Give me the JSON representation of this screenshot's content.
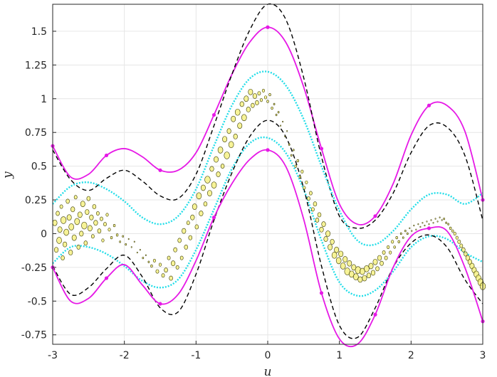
{
  "chart_data": {
    "type": "scatter",
    "xlabel": "u",
    "ylabel": "y",
    "xlim": [
      -3,
      3
    ],
    "ylim": [
      -0.82,
      1.7
    ],
    "xticks": [
      -3,
      -2,
      -1,
      0,
      1,
      2,
      3
    ],
    "xtick_labels": [
      "-3",
      "-2",
      "-1",
      "0",
      "1",
      "2",
      "3"
    ],
    "yticks": [
      -0.75,
      -0.5,
      -0.25,
      0,
      0.25,
      0.5,
      0.75,
      1,
      1.25,
      1.5
    ],
    "ytick_labels": [
      "-0.75",
      "-0.5",
      "-0.25",
      "0",
      "0.25",
      "0.5",
      "0.75",
      "1",
      "1.25",
      "1.5"
    ],
    "grid": true,
    "colors": {
      "outer_band": "#e619e6",
      "dashed_band": "#000000",
      "inner_band": "#22dde8",
      "marker_fill": "#f5f07a",
      "marker_edge": "#3a3a00"
    },
    "series": [
      {
        "style": "solid-magenta-with-markers",
        "x": [
          -3,
          -2.75,
          -2.5,
          -2.25,
          -2,
          -1.75,
          -1.5,
          -1.25,
          -1,
          -0.75,
          -0.5,
          -0.25,
          0,
          0.25,
          0.5,
          0.75,
          1,
          1.25,
          1.5,
          1.75,
          2,
          2.25,
          2.5,
          2.75,
          3
        ],
        "values": [
          0.65,
          0.42,
          0.44,
          0.58,
          0.63,
          0.57,
          0.47,
          0.47,
          0.6,
          0.88,
          1.18,
          1.42,
          1.53,
          1.42,
          1.09,
          0.63,
          0.22,
          0.07,
          0.13,
          0.37,
          0.73,
          0.95,
          0.95,
          0.76,
          0.25
        ]
      },
      {
        "style": "dashed-black",
        "x": [
          -3,
          -2.75,
          -2.5,
          -2.25,
          -2,
          -1.75,
          -1.5,
          -1.25,
          -1,
          -0.75,
          -0.5,
          -0.25,
          0,
          0.25,
          0.5,
          0.75,
          1,
          1.25,
          1.5,
          1.75,
          2,
          2.25,
          2.5,
          2.75,
          3
        ],
        "values": [
          0.62,
          0.4,
          0.32,
          0.41,
          0.47,
          0.39,
          0.28,
          0.26,
          0.44,
          0.8,
          1.18,
          1.51,
          1.7,
          1.59,
          1.16,
          0.57,
          0.13,
          0.04,
          0.1,
          0.3,
          0.6,
          0.8,
          0.79,
          0.58,
          0.1
        ]
      },
      {
        "style": "dotted-cyan",
        "x": [
          -3,
          -2.75,
          -2.5,
          -2.25,
          -2,
          -1.75,
          -1.5,
          -1.25,
          -1,
          -0.75,
          -0.5,
          -0.25,
          0,
          0.25,
          0.5,
          0.75,
          1,
          1.25,
          1.5,
          1.75,
          2,
          2.25,
          2.5,
          2.75,
          3
        ],
        "values": [
          0.22,
          0.35,
          0.38,
          0.33,
          0.24,
          0.12,
          0.07,
          0.13,
          0.33,
          0.65,
          0.95,
          1.15,
          1.2,
          1.1,
          0.85,
          0.5,
          0.17,
          -0.05,
          -0.08,
          0.02,
          0.18,
          0.29,
          0.29,
          0.22,
          0.3
        ]
      },
      {
        "style": "dotted-cyan",
        "x": [
          -3,
          -2.75,
          -2.5,
          -2.25,
          -2,
          -1.75,
          -1.5,
          -1.25,
          -1,
          -0.75,
          -0.5,
          -0.25,
          0,
          0.25,
          0.5,
          0.75,
          1,
          1.25,
          1.5,
          1.75,
          2,
          2.25,
          2.5,
          2.75,
          3
        ],
        "values": [
          -0.22,
          -0.1,
          -0.1,
          -0.15,
          -0.24,
          -0.35,
          -0.4,
          -0.34,
          -0.12,
          0.18,
          0.48,
          0.67,
          0.71,
          0.6,
          0.33,
          -0.05,
          -0.36,
          -0.46,
          -0.42,
          -0.28,
          -0.1,
          -0.02,
          -0.04,
          -0.14,
          -0.21
        ]
      },
      {
        "style": "dashed-black",
        "x": [
          -3,
          -2.75,
          -2.5,
          -2.25,
          -2,
          -1.75,
          -1.5,
          -1.25,
          -1,
          -0.75,
          -0.5,
          -0.25,
          0,
          0.25,
          0.5,
          0.75,
          1,
          1.25,
          1.5,
          1.75,
          2,
          2.25,
          2.5,
          2.75,
          3
        ],
        "values": [
          -0.24,
          -0.45,
          -0.4,
          -0.26,
          -0.16,
          -0.32,
          -0.55,
          -0.58,
          -0.3,
          0.1,
          0.45,
          0.72,
          0.84,
          0.72,
          0.34,
          -0.24,
          -0.68,
          -0.77,
          -0.55,
          -0.25,
          -0.07,
          -0.01,
          -0.1,
          -0.34,
          -0.52
        ]
      },
      {
        "style": "solid-magenta-with-markers",
        "x": [
          -3,
          -2.75,
          -2.5,
          -2.25,
          -2,
          -1.75,
          -1.5,
          -1.25,
          -1,
          -0.75,
          -0.5,
          -0.25,
          0,
          0.25,
          0.5,
          0.75,
          1,
          1.25,
          1.5,
          1.75,
          2,
          2.25,
          2.5,
          2.75,
          3
        ],
        "values": [
          -0.25,
          -0.5,
          -0.48,
          -0.33,
          -0.23,
          -0.38,
          -0.52,
          -0.45,
          -0.2,
          0.12,
          0.37,
          0.55,
          0.62,
          0.5,
          0.11,
          -0.44,
          -0.78,
          -0.82,
          -0.6,
          -0.25,
          -0.02,
          0.04,
          0.02,
          -0.25,
          -0.65
        ]
      }
    ],
    "scatter_points": [
      [
        -2.97,
        0.08,
        9
      ],
      [
        -2.95,
        -0.12,
        8
      ],
      [
        -2.93,
        0.15,
        7
      ],
      [
        -2.91,
        -0.05,
        10
      ],
      [
        -2.9,
        0.03,
        9
      ],
      [
        -2.88,
        0.2,
        6
      ],
      [
        -2.86,
        -0.18,
        7
      ],
      [
        -2.85,
        0.1,
        11
      ],
      [
        -2.83,
        -0.08,
        8
      ],
      [
        -2.81,
        0.01,
        10
      ],
      [
        -2.79,
        0.24,
        7
      ],
      [
        -2.77,
        0.12,
        9
      ],
      [
        -2.75,
        -0.14,
        8
      ],
      [
        -2.74,
        0.05,
        10
      ],
      [
        -2.72,
        0.18,
        8
      ],
      [
        -2.7,
        -0.03,
        9
      ],
      [
        -2.68,
        0.27,
        6
      ],
      [
        -2.66,
        0.09,
        10
      ],
      [
        -2.64,
        -0.1,
        7
      ],
      [
        -2.62,
        0.14,
        9
      ],
      [
        -2.6,
        0.0,
        8
      ],
      [
        -2.58,
        0.22,
        9
      ],
      [
        -2.56,
        0.06,
        11
      ],
      [
        -2.54,
        -0.07,
        7
      ],
      [
        -2.52,
        0.16,
        8
      ],
      [
        -2.5,
        0.26,
        7
      ],
      [
        -2.48,
        0.04,
        9
      ],
      [
        -2.46,
        0.12,
        8
      ],
      [
        -2.44,
        -0.02,
        6
      ],
      [
        -2.42,
        0.2,
        7
      ],
      [
        -2.4,
        0.08,
        8
      ],
      [
        -2.37,
        0.15,
        6
      ],
      [
        -2.35,
        0.02,
        7
      ],
      [
        -2.32,
        0.11,
        6
      ],
      [
        -2.3,
        -0.05,
        5
      ],
      [
        -2.27,
        0.07,
        6
      ],
      [
        -2.24,
        0.14,
        5
      ],
      [
        -2.21,
        0.03,
        5
      ],
      [
        -2.18,
        -0.03,
        4
      ],
      [
        -2.14,
        0.06,
        4
      ],
      [
        -2.1,
        -0.01,
        4
      ],
      [
        -2.06,
        -0.06,
        3
      ],
      [
        -2.02,
        -0.02,
        3
      ],
      [
        -1.98,
        -0.08,
        3
      ],
      [
        -1.94,
        -0.04,
        2
      ],
      [
        -1.9,
        -0.1,
        2
      ],
      [
        -1.86,
        -0.06,
        2
      ],
      [
        -1.82,
        -0.14,
        2
      ],
      [
        -1.78,
        -0.12,
        2
      ],
      [
        -1.74,
        -0.18,
        3
      ],
      [
        -1.7,
        -0.16,
        2
      ],
      [
        -1.66,
        -0.21,
        3
      ],
      [
        -1.62,
        -0.24,
        4
      ],
      [
        -1.58,
        -0.2,
        5
      ],
      [
        -1.54,
        -0.28,
        6
      ],
      [
        -1.5,
        -0.23,
        5
      ],
      [
        -1.46,
        -0.31,
        6
      ],
      [
        -1.42,
        -0.27,
        7
      ],
      [
        -1.38,
        -0.18,
        6
      ],
      [
        -1.35,
        -0.33,
        7
      ],
      [
        -1.32,
        -0.22,
        8
      ],
      [
        -1.29,
        -0.12,
        7
      ],
      [
        -1.26,
        -0.25,
        6
      ],
      [
        -1.23,
        -0.05,
        7
      ],
      [
        -1.2,
        -0.18,
        6
      ],
      [
        -1.17,
        0.02,
        8
      ],
      [
        -1.14,
        -0.1,
        7
      ],
      [
        -1.11,
        0.08,
        6
      ],
      [
        -1.08,
        -0.03,
        7
      ],
      [
        -1.05,
        0.12,
        8
      ],
      [
        -1.02,
        0.2,
        9
      ],
      [
        -0.99,
        0.05,
        7
      ],
      [
        -0.96,
        0.28,
        10
      ],
      [
        -0.93,
        0.15,
        8
      ],
      [
        -0.9,
        0.34,
        9
      ],
      [
        -0.87,
        0.22,
        7
      ],
      [
        -0.84,
        0.4,
        11
      ],
      [
        -0.81,
        0.3,
        9
      ],
      [
        -0.78,
        0.48,
        8
      ],
      [
        -0.75,
        0.36,
        10
      ],
      [
        -0.72,
        0.55,
        9
      ],
      [
        -0.69,
        0.44,
        8
      ],
      [
        -0.66,
        0.62,
        10
      ],
      [
        -0.63,
        0.5,
        7
      ],
      [
        -0.6,
        0.7,
        9
      ],
      [
        -0.57,
        0.58,
        11
      ],
      [
        -0.54,
        0.76,
        8
      ],
      [
        -0.51,
        0.66,
        10
      ],
      [
        -0.48,
        0.85,
        9
      ],
      [
        -0.45,
        0.72,
        8
      ],
      [
        -0.42,
        0.9,
        10
      ],
      [
        -0.39,
        0.8,
        9
      ],
      [
        -0.36,
        0.96,
        8
      ],
      [
        -0.33,
        0.86,
        10
      ],
      [
        -0.3,
        1.0,
        9
      ],
      [
        -0.27,
        0.92,
        8
      ],
      [
        -0.24,
        1.05,
        9
      ],
      [
        -0.21,
        0.95,
        7
      ],
      [
        -0.18,
        1.02,
        8
      ],
      [
        -0.15,
        0.97,
        7
      ],
      [
        -0.12,
        1.04,
        6
      ],
      [
        -0.09,
        0.99,
        5
      ],
      [
        -0.06,
        1.06,
        5
      ],
      [
        -0.03,
        1.01,
        5
      ],
      [
        0.0,
        0.98,
        4
      ],
      [
        0.03,
        1.03,
        4
      ],
      [
        0.06,
        0.93,
        4
      ],
      [
        0.09,
        0.96,
        3
      ],
      [
        0.12,
        0.88,
        3
      ],
      [
        0.15,
        0.9,
        3
      ],
      [
        0.18,
        0.8,
        2
      ],
      [
        0.21,
        0.83,
        2
      ],
      [
        0.24,
        0.72,
        2
      ],
      [
        0.27,
        0.76,
        2
      ],
      [
        0.3,
        0.66,
        3
      ],
      [
        0.33,
        0.58,
        3
      ],
      [
        0.36,
        0.62,
        3
      ],
      [
        0.39,
        0.5,
        4
      ],
      [
        0.42,
        0.54,
        4
      ],
      [
        0.45,
        0.42,
        4
      ],
      [
        0.48,
        0.46,
        5
      ],
      [
        0.51,
        0.34,
        5
      ],
      [
        0.54,
        0.38,
        5
      ],
      [
        0.57,
        0.26,
        6
      ],
      [
        0.6,
        0.3,
        6
      ],
      [
        0.63,
        0.18,
        6
      ],
      [
        0.66,
        0.22,
        7
      ],
      [
        0.69,
        0.1,
        7
      ],
      [
        0.72,
        0.14,
        7
      ],
      [
        0.75,
        0.03,
        8
      ],
      [
        0.78,
        0.07,
        8
      ],
      [
        0.81,
        -0.04,
        8
      ],
      [
        0.84,
        0.0,
        9
      ],
      [
        0.87,
        -0.1,
        9
      ],
      [
        0.9,
        -0.06,
        8
      ],
      [
        0.93,
        -0.16,
        10
      ],
      [
        0.96,
        -0.12,
        9
      ],
      [
        0.99,
        -0.2,
        10
      ],
      [
        1.02,
        -0.15,
        9
      ],
      [
        1.05,
        -0.24,
        10
      ],
      [
        1.08,
        -0.19,
        9
      ],
      [
        1.11,
        -0.28,
        11
      ],
      [
        1.14,
        -0.22,
        9
      ],
      [
        1.17,
        -0.3,
        10
      ],
      [
        1.2,
        -0.25,
        9
      ],
      [
        1.23,
        -0.32,
        10
      ],
      [
        1.26,
        -0.27,
        11
      ],
      [
        1.29,
        -0.34,
        9
      ],
      [
        1.32,
        -0.28,
        10
      ],
      [
        1.35,
        -0.33,
        9
      ],
      [
        1.38,
        -0.26,
        10
      ],
      [
        1.41,
        -0.31,
        8
      ],
      [
        1.44,
        -0.24,
        9
      ],
      [
        1.47,
        -0.29,
        8
      ],
      [
        1.5,
        -0.21,
        9
      ],
      [
        1.53,
        -0.26,
        7
      ],
      [
        1.56,
        -0.18,
        8
      ],
      [
        1.59,
        -0.22,
        7
      ],
      [
        1.62,
        -0.14,
        6
      ],
      [
        1.65,
        -0.18,
        6
      ],
      [
        1.68,
        -0.1,
        5
      ],
      [
        1.71,
        -0.14,
        5
      ],
      [
        1.74,
        -0.06,
        5
      ],
      [
        1.77,
        -0.1,
        4
      ],
      [
        1.8,
        -0.03,
        4
      ],
      [
        1.83,
        -0.06,
        4
      ],
      [
        1.86,
        0.0,
        3
      ],
      [
        1.89,
        -0.03,
        3
      ],
      [
        1.92,
        0.02,
        3
      ],
      [
        1.95,
        0.0,
        3
      ],
      [
        1.98,
        0.04,
        2
      ],
      [
        2.01,
        0.02,
        2
      ],
      [
        2.04,
        0.06,
        2
      ],
      [
        2.07,
        0.03,
        2
      ],
      [
        2.1,
        0.07,
        2
      ],
      [
        2.13,
        0.05,
        2
      ],
      [
        2.16,
        0.08,
        2
      ],
      [
        2.19,
        0.06,
        2
      ],
      [
        2.22,
        0.09,
        2
      ],
      [
        2.25,
        0.07,
        2
      ],
      [
        2.28,
        0.1,
        2
      ],
      [
        2.31,
        0.08,
        2
      ],
      [
        2.34,
        0.11,
        2
      ],
      [
        2.37,
        0.09,
        2
      ],
      [
        2.4,
        0.12,
        2
      ],
      [
        2.43,
        0.1,
        2
      ],
      [
        2.46,
        0.11,
        3
      ],
      [
        2.49,
        0.08,
        3
      ],
      [
        2.52,
        0.07,
        3
      ],
      [
        2.55,
        0.04,
        4
      ],
      [
        2.58,
        0.02,
        4
      ],
      [
        2.61,
        0.0,
        5
      ],
      [
        2.64,
        -0.03,
        5
      ],
      [
        2.67,
        -0.06,
        6
      ],
      [
        2.7,
        -0.09,
        6
      ],
      [
        2.73,
        -0.12,
        7
      ],
      [
        2.76,
        -0.15,
        7
      ],
      [
        2.79,
        -0.18,
        8
      ],
      [
        2.82,
        -0.21,
        8
      ],
      [
        2.85,
        -0.24,
        9
      ],
      [
        2.88,
        -0.27,
        9
      ],
      [
        2.91,
        -0.3,
        10
      ],
      [
        2.94,
        -0.33,
        10
      ],
      [
        2.97,
        -0.36,
        11
      ],
      [
        3.0,
        -0.39,
        11
      ]
    ]
  }
}
